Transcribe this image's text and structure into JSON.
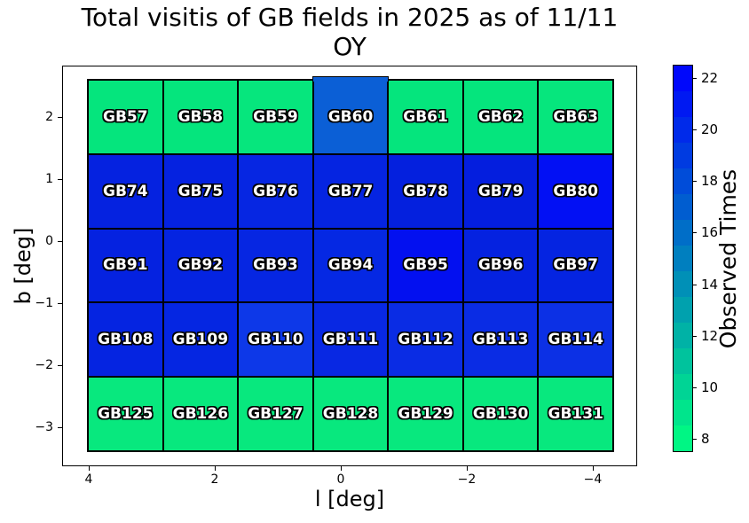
{
  "title": {
    "line1": "Total visitis of GB fields in 2025 as of 11/11",
    "line2": "OY"
  },
  "axes": {
    "x": {
      "label": "l [deg]",
      "ticks": [
        "4",
        "2",
        "0",
        "−2",
        "−4"
      ]
    },
    "y": {
      "label": "b [deg]",
      "ticks": [
        "2",
        "1",
        "0",
        "−1",
        "−2",
        "−3"
      ]
    }
  },
  "colorbar": {
    "label": "Observed Times",
    "vmin": 7.5,
    "vmax": 22.5,
    "ticks": [
      22,
      20,
      18,
      16,
      14,
      12,
      10,
      8
    ],
    "band_colors": [
      "#00f684",
      "#00e58c",
      "#00d495",
      "#00c39d",
      "#00b2a6",
      "#00a1ae",
      "#0090b7",
      "#007fbf",
      "#006ec8",
      "#005dd0",
      "#004cd9",
      "#003be1",
      "#002aea",
      "#0019f2",
      "#0008fb"
    ]
  },
  "chart_data": {
    "type": "heatmap",
    "title": "Total visitis of GB fields in 2025 as of 11/11 OY",
    "xlabel": "l [deg]",
    "ylabel": "b [deg]",
    "colorbar_label": "Observed Times",
    "colormap": "winter_r (spring green = low, blue = high)",
    "x_tick_labels": [
      "4",
      "2",
      "0",
      "-2",
      "-4"
    ],
    "y_tick_labels": [
      "2",
      "1",
      "0",
      "-1",
      "-2",
      "-3"
    ],
    "value_scale": "Observed Times, approx 8-22",
    "rows": [
      [
        {
          "label": "GB57",
          "color": "#05e57d",
          "value": 9
        },
        {
          "label": "GB58",
          "color": "#05e57d",
          "value": 9
        },
        {
          "label": "GB59",
          "color": "#06e67d",
          "value": 9
        },
        {
          "label": "GB60",
          "color": "#0b5fd6",
          "value": 17,
          "raised": true
        },
        {
          "label": "GB61",
          "color": "#05e57d",
          "value": 9
        },
        {
          "label": "GB62",
          "color": "#05e57d",
          "value": 9
        },
        {
          "label": "GB63",
          "color": "#06e67d",
          "value": 9
        }
      ],
      [
        {
          "label": "GB74",
          "color": "#0522e0",
          "value": 20
        },
        {
          "label": "GB75",
          "color": "#0522e0",
          "value": 20
        },
        {
          "label": "GB76",
          "color": "#0626e2",
          "value": 20
        },
        {
          "label": "GB77",
          "color": "#0524e1",
          "value": 20
        },
        {
          "label": "GB78",
          "color": "#0420de",
          "value": 21
        },
        {
          "label": "GB79",
          "color": "#041ede",
          "value": 21
        },
        {
          "label": "GB80",
          "color": "#0210f4",
          "value": 22
        }
      ],
      [
        {
          "label": "GB91",
          "color": "#0522e0",
          "value": 20
        },
        {
          "label": "GB92",
          "color": "#0524e1",
          "value": 20
        },
        {
          "label": "GB93",
          "color": "#0626e2",
          "value": 20
        },
        {
          "label": "GB94",
          "color": "#0528e3",
          "value": 20
        },
        {
          "label": "GB95",
          "color": "#0310f0",
          "value": 22
        },
        {
          "label": "GB96",
          "color": "#0522e0",
          "value": 20
        },
        {
          "label": "GB97",
          "color": "#0524e1",
          "value": 20
        }
      ],
      [
        {
          "label": "GB108",
          "color": "#0524e1",
          "value": 20
        },
        {
          "label": "GB109",
          "color": "#0526e2",
          "value": 20
        },
        {
          "label": "GB110",
          "color": "#0d38e8",
          "value": 19
        },
        {
          "label": "GB111",
          "color": "#0828e3",
          "value": 20
        },
        {
          "label": "GB112",
          "color": "#0a2ce4",
          "value": 20
        },
        {
          "label": "GB113",
          "color": "#0a2ce4",
          "value": 20
        },
        {
          "label": "GB114",
          "color": "#0c30e5",
          "value": 19
        }
      ],
      [
        {
          "label": "GB125",
          "color": "#08e87e",
          "value": 9
        },
        {
          "label": "GB126",
          "color": "#08e87e",
          "value": 9
        },
        {
          "label": "GB127",
          "color": "#08e87e",
          "value": 9
        },
        {
          "label": "GB128",
          "color": "#08e87e",
          "value": 9
        },
        {
          "label": "GB129",
          "color": "#08e87e",
          "value": 9
        },
        {
          "label": "GB130",
          "color": "#08e87e",
          "value": 9
        },
        {
          "label": "GB131",
          "color": "#08e87e",
          "value": 9
        }
      ]
    ]
  }
}
